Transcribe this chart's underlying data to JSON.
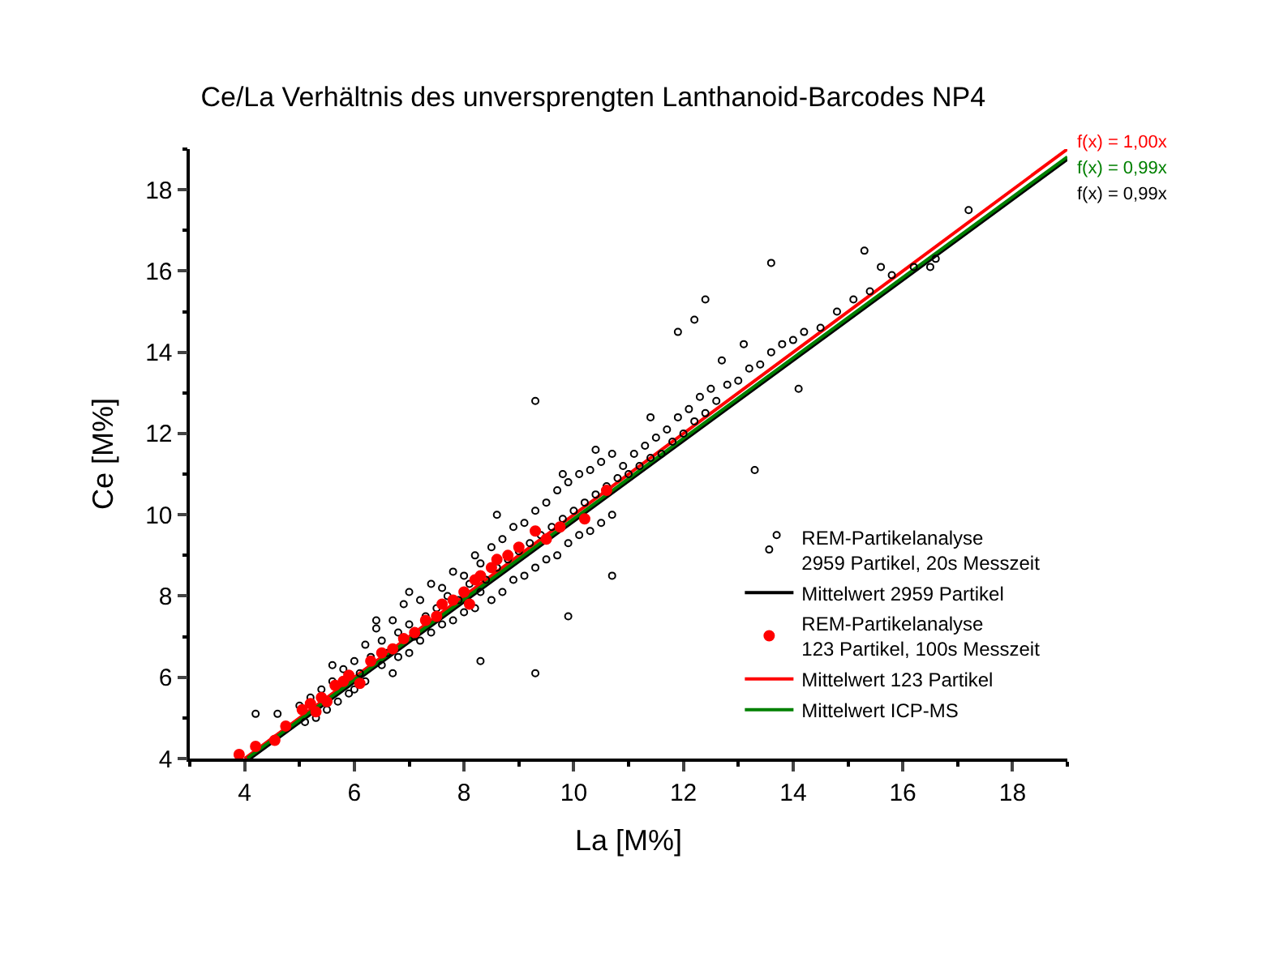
{
  "chart_data": {
    "type": "scatter",
    "title": "Ce/La Verhältnis des unversprengten Lanthanoid-Barcodes NP4",
    "xlabel": "La [M%]",
    "ylabel": "Ce [M%]",
    "xlim": [
      3,
      19
    ],
    "ylim": [
      4,
      19
    ],
    "xticks": [
      4,
      6,
      8,
      10,
      12,
      14,
      16,
      18
    ],
    "yticks": [
      4,
      6,
      8,
      10,
      12,
      14,
      16,
      18
    ],
    "legend": "bottom right",
    "series": [
      {
        "name": "REM-Partikelanalyse\n2959 Partikel, 20s Messzeit",
        "marker": "circle",
        "color": "#000000",
        "x": [
          4.2,
          4.6,
          5.0,
          5.1,
          5.2,
          5.3,
          5.4,
          5.5,
          5.6,
          5.7,
          5.8,
          5.9,
          6.0,
          6.0,
          6.1,
          6.2,
          6.2,
          6.3,
          6.4,
          6.5,
          6.5,
          6.6,
          6.7,
          6.8,
          6.8,
          6.9,
          7.0,
          7.0,
          7.1,
          7.2,
          7.2,
          7.3,
          7.4,
          7.4,
          7.5,
          7.6,
          7.6,
          7.7,
          7.8,
          7.8,
          7.9,
          8.0,
          8.0,
          8.1,
          8.2,
          8.2,
          8.3,
          8.3,
          8.4,
          8.5,
          8.5,
          8.6,
          8.7,
          8.7,
          8.8,
          8.9,
          8.9,
          9.0,
          9.1,
          9.1,
          9.2,
          9.3,
          9.3,
          9.4,
          9.5,
          9.5,
          9.6,
          9.7,
          9.7,
          9.8,
          9.9,
          9.9,
          10.0,
          10.1,
          10.1,
          10.2,
          10.3,
          10.3,
          10.4,
          10.5,
          10.5,
          10.6,
          10.7,
          10.7,
          10.8,
          10.9,
          11.0,
          11.1,
          11.2,
          11.3,
          11.4,
          11.5,
          11.6,
          11.7,
          11.8,
          11.9,
          12.0,
          12.1,
          12.2,
          12.3,
          12.4,
          12.5,
          12.6,
          12.8,
          13.0,
          13.2,
          13.4,
          13.6,
          13.8,
          14.0,
          14.2,
          14.5,
          14.8,
          15.1,
          15.4,
          15.8,
          16.2,
          16.6,
          17.2,
          9.3,
          13.7,
          13.3,
          10.7,
          9.9,
          8.3,
          9.3,
          12.2,
          13.6,
          15.3,
          15.6,
          16.5,
          14.1,
          11.9,
          12.4,
          6.4,
          7.0,
          8.6,
          9.8,
          10.4,
          11.4,
          12.7,
          13.1,
          5.6,
          6.7
        ],
        "values": [
          5.1,
          5.1,
          5.3,
          4.9,
          5.5,
          5.0,
          5.7,
          5.2,
          5.9,
          5.4,
          6.2,
          5.6,
          6.4,
          5.7,
          6.1,
          6.8,
          5.9,
          6.5,
          7.2,
          6.3,
          6.9,
          6.6,
          7.4,
          6.5,
          7.1,
          7.8,
          6.6,
          7.3,
          7.0,
          7.9,
          6.9,
          7.5,
          8.3,
          7.1,
          7.7,
          7.3,
          8.2,
          8.0,
          7.4,
          8.6,
          7.9,
          7.6,
          8.5,
          8.3,
          7.7,
          9.0,
          8.1,
          8.8,
          8.4,
          7.9,
          9.2,
          8.7,
          8.1,
          9.4,
          8.9,
          8.4,
          9.7,
          9.1,
          8.5,
          9.8,
          9.3,
          8.7,
          10.1,
          9.5,
          8.9,
          10.3,
          9.7,
          9.0,
          10.6,
          9.9,
          9.3,
          10.8,
          10.1,
          9.5,
          11.0,
          10.3,
          9.6,
          11.1,
          10.5,
          9.8,
          11.3,
          10.7,
          10.0,
          11.5,
          10.9,
          11.2,
          11.0,
          11.5,
          11.2,
          11.7,
          11.4,
          11.9,
          11.5,
          12.1,
          11.8,
          12.4,
          12.0,
          12.6,
          12.3,
          12.9,
          12.5,
          13.1,
          12.8,
          13.2,
          13.3,
          13.6,
          13.7,
          14.0,
          14.2,
          14.3,
          14.5,
          14.6,
          15.0,
          15.3,
          15.5,
          15.9,
          16.1,
          16.3,
          17.5,
          6.1,
          9.5,
          11.1,
          8.5,
          7.5,
          6.4,
          12.8,
          14.8,
          16.2,
          16.5,
          16.1,
          16.1,
          13.1,
          14.5,
          15.3,
          7.4,
          8.1,
          10.0,
          11.0,
          11.6,
          12.4,
          13.8,
          14.2,
          6.3,
          6.1
        ]
      },
      {
        "name": "Mittelwert 2959 Partikel",
        "type": "line",
        "color": "#000000",
        "x": [
          4.1,
          19
        ],
        "values": [
          4.0,
          18.75
        ]
      },
      {
        "name": "REM-Partikelanalyse\n123 Partikel, 100s Messzeit",
        "marker": "circle",
        "color": "#ff0000",
        "x": [
          3.9,
          4.2,
          4.55,
          4.75,
          5.05,
          5.2,
          5.3,
          5.4,
          5.5,
          5.65,
          5.8,
          5.9,
          6.1,
          6.3,
          6.5,
          6.7,
          6.9,
          7.1,
          7.3,
          7.5,
          7.6,
          7.8,
          8.0,
          8.1,
          8.2,
          8.3,
          8.5,
          8.6,
          8.8,
          9.0,
          9.3,
          9.5,
          9.75,
          10.2,
          10.6
        ],
        "values": [
          4.1,
          4.3,
          4.45,
          4.8,
          5.2,
          5.35,
          5.15,
          5.5,
          5.4,
          5.8,
          5.9,
          6.05,
          5.85,
          6.4,
          6.6,
          6.7,
          6.95,
          7.1,
          7.4,
          7.5,
          7.8,
          7.9,
          8.1,
          7.8,
          8.4,
          8.5,
          8.7,
          8.9,
          9.0,
          9.2,
          9.6,
          9.4,
          9.7,
          9.9,
          10.6
        ]
      },
      {
        "name": "Mittelwert 123 Partikel",
        "type": "line",
        "color": "#ff0000",
        "x": [
          4,
          19
        ],
        "values": [
          4,
          19
        ]
      },
      {
        "name": "Mittelwert ICP-MS",
        "type": "line",
        "color": "#008000",
        "x": [
          4.05,
          19
        ],
        "values": [
          4.01,
          18.81
        ]
      }
    ],
    "annotations": [
      "f(x) = 1,00x",
      "f(x) = 0,99x",
      "f(x) = 0,99x"
    ]
  }
}
